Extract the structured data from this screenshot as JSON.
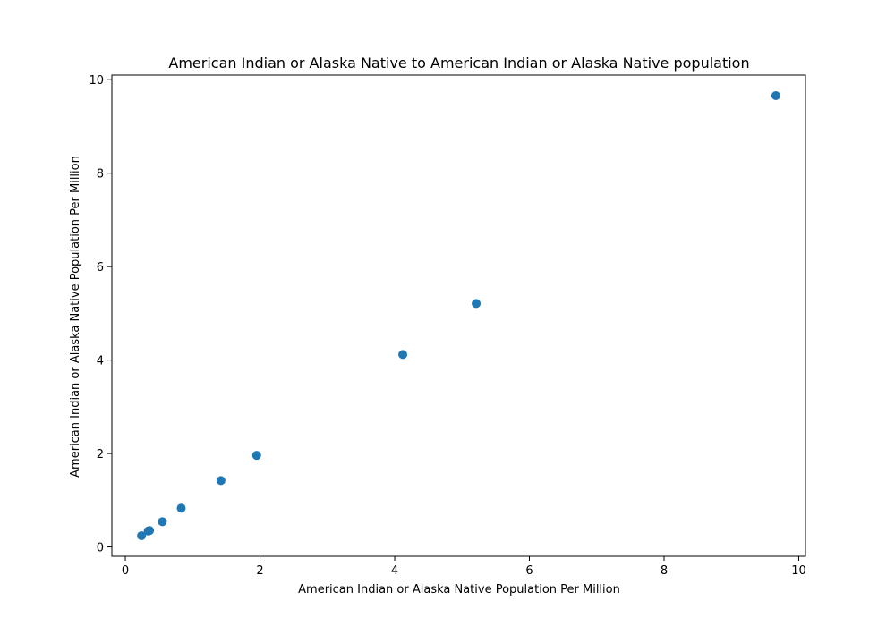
{
  "chart_data": {
    "type": "scatter",
    "title": "American Indian or Alaska Native to American Indian or Alaska Native population",
    "xlabel": "American Indian or Alaska Native Population Per Million",
    "ylabel": "American Indian or Alaska Native Population Per Million",
    "xlim": [
      -0.2,
      10.1
    ],
    "ylim": [
      -0.2,
      10.1
    ],
    "xticks": [
      0,
      2,
      4,
      6,
      8,
      10
    ],
    "yticks": [
      0,
      2,
      4,
      6,
      8,
      10
    ],
    "xtick_labels": [
      "0",
      "2",
      "4",
      "6",
      "8",
      "10"
    ],
    "ytick_labels": [
      "0",
      "2",
      "4",
      "6",
      "8",
      "10"
    ],
    "grid": false,
    "marker_color": "#1f77b4",
    "points": [
      {
        "x": 0.24,
        "y": 0.24
      },
      {
        "x": 0.34,
        "y": 0.34
      },
      {
        "x": 0.36,
        "y": 0.35
      },
      {
        "x": 0.55,
        "y": 0.54
      },
      {
        "x": 0.83,
        "y": 0.83
      },
      {
        "x": 1.42,
        "y": 1.42
      },
      {
        "x": 1.95,
        "y": 1.96
      },
      {
        "x": 4.12,
        "y": 4.12
      },
      {
        "x": 5.21,
        "y": 5.21
      },
      {
        "x": 9.66,
        "y": 9.66
      }
    ]
  }
}
